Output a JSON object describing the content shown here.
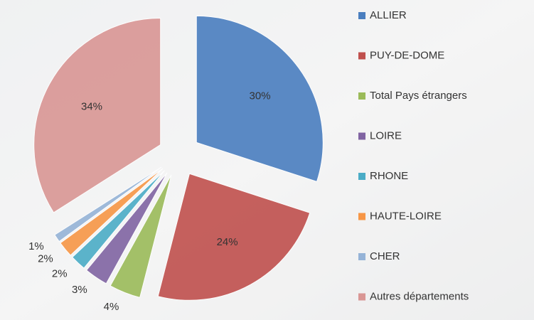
{
  "chart_data": {
    "type": "pie",
    "categories": [
      "ALLIER",
      "PUY-DE-DOME",
      "Total Pays étrangers",
      "LOIRE",
      "RHONE",
      "HAUTE-LOIRE",
      "CHER",
      "Autres départements"
    ],
    "values": [
      30,
      24,
      4,
      3,
      2,
      2,
      1,
      34
    ],
    "value_labels": [
      "30%",
      "24%",
      "4%",
      "3%",
      "2%",
      "2%",
      "1%",
      "34%"
    ],
    "colors": [
      "#4a7ebf",
      "#c0504d",
      "#9bbb59",
      "#8064a2",
      "#4bacc6",
      "#f79646",
      "#95b3d7",
      "#d99694"
    ],
    "legend": "right"
  }
}
